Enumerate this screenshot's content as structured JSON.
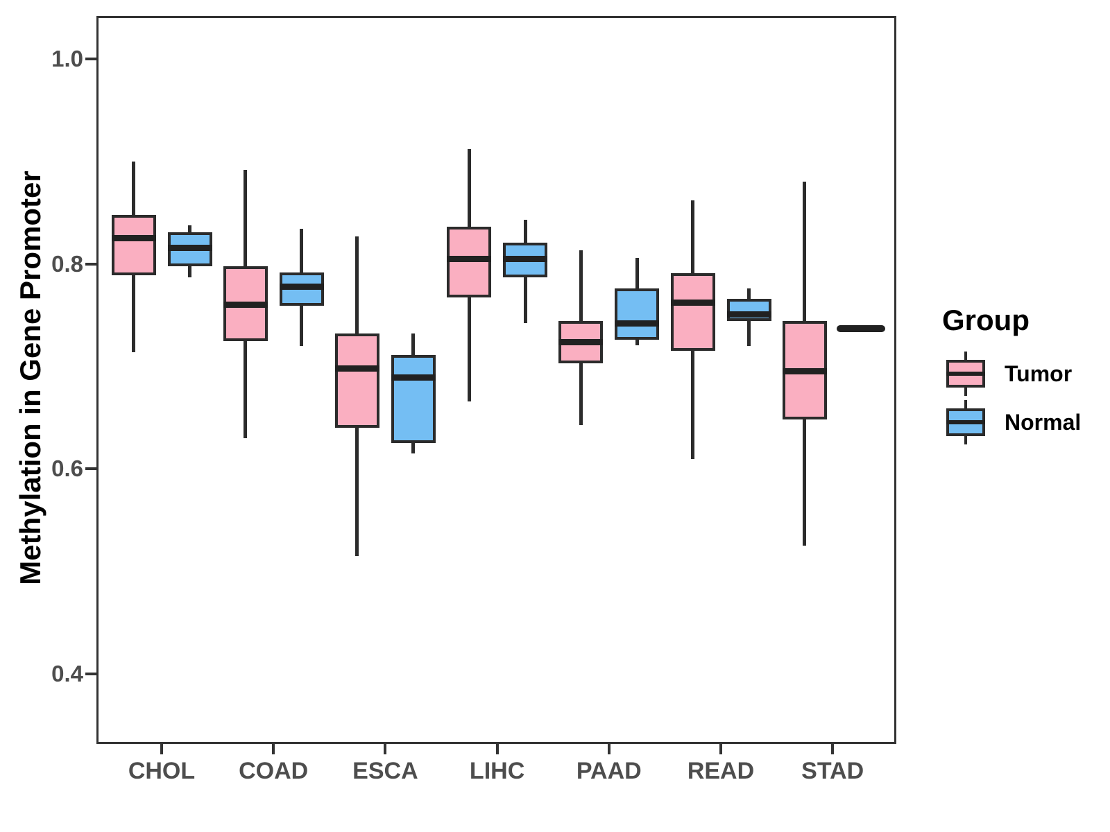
{
  "chart_data": {
    "type": "boxplot",
    "title": "",
    "xlabel": "",
    "ylabel": "Methylation in Gene Promoter",
    "categories": [
      "CHOL",
      "COAD",
      "ESCA",
      "LIHC",
      "PAAD",
      "READ",
      "STAD"
    ],
    "y_tick_labels": [
      "1.0",
      "0.8",
      "0.6",
      "0.4"
    ],
    "y_tick_values": [
      1.0,
      0.8,
      0.6,
      0.4
    ],
    "ylim": [
      0.33,
      1.04
    ],
    "grid": false,
    "legend": {
      "title": "Group",
      "position": "right"
    },
    "colors": {
      "tumor_fill": "#FAAFC1",
      "normal_fill": "#74BEF3",
      "box_outline": "#2B2B2B",
      "median_line": "#212121",
      "axis_text": "#4D4D4D",
      "panel_border": "#333333"
    },
    "series": [
      {
        "name": "Tumor",
        "fill": "#FAAFC1",
        "boxes": [
          {
            "category": "CHOL",
            "min": 0.714,
            "q1": 0.789,
            "median": 0.825,
            "q3": 0.848,
            "max": 0.9
          },
          {
            "category": "COAD",
            "min": 0.63,
            "q1": 0.725,
            "median": 0.76,
            "q3": 0.798,
            "max": 0.892
          },
          {
            "category": "ESCA",
            "min": 0.515,
            "q1": 0.64,
            "median": 0.698,
            "q3": 0.732,
            "max": 0.827
          },
          {
            "category": "LIHC",
            "min": 0.666,
            "q1": 0.767,
            "median": 0.805,
            "q3": 0.836,
            "max": 0.912
          },
          {
            "category": "PAAD",
            "min": 0.643,
            "q1": 0.703,
            "median": 0.724,
            "q3": 0.744,
            "max": 0.813
          },
          {
            "category": "READ",
            "min": 0.61,
            "q1": 0.715,
            "median": 0.762,
            "q3": 0.791,
            "max": 0.862
          },
          {
            "category": "STAD",
            "min": 0.525,
            "q1": 0.648,
            "median": 0.695,
            "q3": 0.744,
            "max": 0.88
          }
        ]
      },
      {
        "name": "Normal",
        "fill": "#74BEF3",
        "boxes": [
          {
            "category": "CHOL",
            "min": 0.787,
            "q1": 0.798,
            "median": 0.816,
            "q3": 0.831,
            "max": 0.838
          },
          {
            "category": "COAD",
            "min": 0.72,
            "q1": 0.759,
            "median": 0.778,
            "q3": 0.792,
            "max": 0.834
          },
          {
            "category": "ESCA",
            "min": 0.615,
            "q1": 0.625,
            "median": 0.689,
            "q3": 0.711,
            "max": 0.732
          },
          {
            "category": "LIHC",
            "min": 0.742,
            "q1": 0.787,
            "median": 0.805,
            "q3": 0.821,
            "max": 0.843
          },
          {
            "category": "PAAD",
            "min": 0.721,
            "q1": 0.726,
            "median": 0.742,
            "q3": 0.776,
            "max": 0.806
          },
          {
            "category": "READ",
            "min": 0.72,
            "q1": 0.744,
            "median": 0.751,
            "q3": 0.766,
            "max": 0.776
          },
          {
            "category": "STAD",
            "min": 0.737,
            "q1": 0.737,
            "median": 0.737,
            "q3": 0.737,
            "max": 0.737
          }
        ]
      }
    ]
  }
}
